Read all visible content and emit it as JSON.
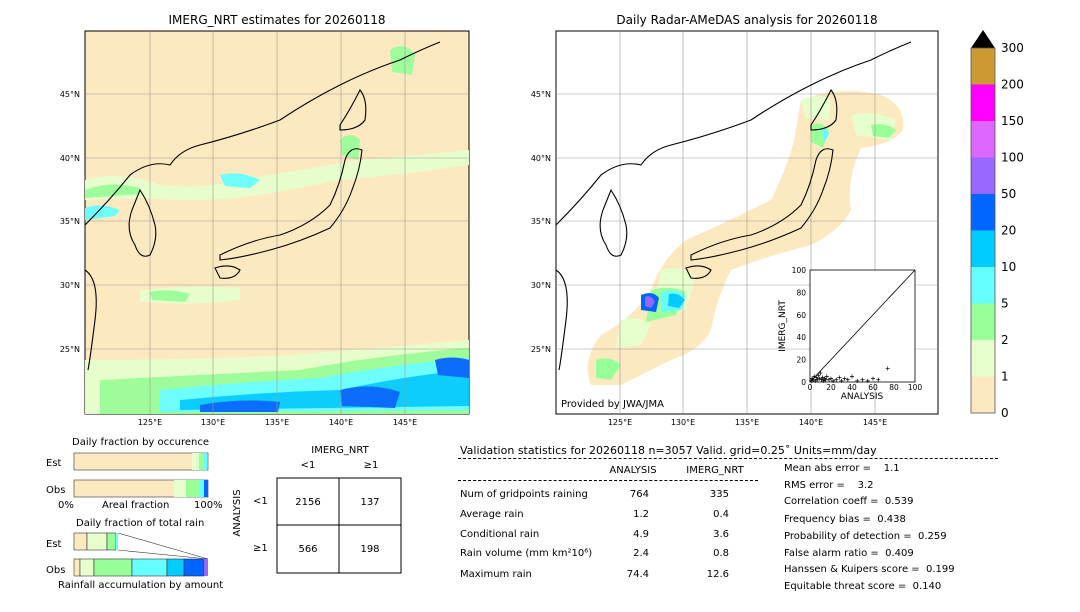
{
  "left_map": {
    "title": "IMERG_NRT estimates for 20260118",
    "lat_labels": [
      "45°N",
      "40°N",
      "35°N",
      "30°N",
      "25°N"
    ],
    "lon_labels": [
      "125°E",
      "130°E",
      "135°E",
      "140°E",
      "145°E"
    ]
  },
  "right_map": {
    "title": "Daily Radar-AMeDAS analysis for 20260118",
    "lat_labels": [
      "45°N",
      "40°N",
      "35°N",
      "30°N",
      "25°N"
    ],
    "lon_labels": [
      "125°E",
      "130°E",
      "135°E",
      "140°E",
      "145°E"
    ],
    "credit": "Provided by JWA/JMA"
  },
  "colorbar": {
    "levels": [
      "0",
      "1",
      "2",
      "5",
      "10",
      "20",
      "50",
      "100",
      "150",
      "200",
      "300"
    ],
    "colors": [
      "#fde9c0",
      "#e6ffcc",
      "#99ff99",
      "#66ffff",
      "#00ccff",
      "#0066ff",
      "#9966ff",
      "#dd66ff",
      "#ff00ff",
      "#cc9933"
    ],
    "extend_color": "#000000"
  },
  "scatter": {
    "ylabel": "IMERG_NRT",
    "xlabel": "ANALYSIS",
    "ticks": [
      "0",
      "20",
      "40",
      "60",
      "80",
      "100"
    ]
  },
  "fraction_occurrence": {
    "title": "Daily fraction by occurence",
    "rows": [
      "Est",
      "Obs"
    ],
    "xlabel_left": "0%",
    "xlabel_mid": "Areal fraction",
    "xlabel_right": "100%"
  },
  "fraction_rain": {
    "title": "Daily fraction of total rain",
    "rows": [
      "Est",
      "Obs"
    ],
    "xlabel": "Rainfall accumulation by amount"
  },
  "contingency": {
    "title": "IMERG_NRT",
    "col_labels": [
      "<1",
      "≥1"
    ],
    "row_title": "ANALYSIS",
    "row_labels": [
      "<1",
      "≥1"
    ],
    "cells": [
      [
        "2156",
        "137"
      ],
      [
        "566",
        "198"
      ]
    ]
  },
  "validation": {
    "header": "Validation statistics for 20260118  n=3057 Valid. grid=0.25˚ Units=mm/day",
    "col_analysis": "ANALYSIS",
    "col_imerg": "IMERG_NRT",
    "rows": [
      {
        "label": "Num of gridpoints raining",
        "analysis": "764",
        "imerg": "335"
      },
      {
        "label": "Average rain",
        "analysis": "1.2",
        "imerg": "0.4"
      },
      {
        "label": "Conditional rain",
        "analysis": "4.9",
        "imerg": "3.6"
      },
      {
        "label": "Rain volume (mm km²10⁶)",
        "analysis": "2.4",
        "imerg": "0.8"
      },
      {
        "label": "Maximum rain",
        "analysis": "74.4",
        "imerg": "12.6"
      }
    ],
    "scores": [
      "Mean abs error =    1.1",
      "RMS error =    3.2",
      "Correlation coeff =  0.539",
      "Frequency bias =  0.438",
      "Probability of detection =  0.259",
      "False alarm ratio =  0.409",
      "Hanssen & Kuipers score =  0.199",
      "Equitable threat score =  0.140"
    ]
  },
  "chart_data": [
    {
      "type": "heatmap",
      "title": "IMERG_NRT estimates for 20260118",
      "xlabel": "",
      "ylabel": "",
      "xlim": [
        119.5,
        150
      ],
      "ylim": [
        20,
        50
      ],
      "x_ticks": [
        "125°E",
        "130°E",
        "135°E",
        "140°E",
        "145°E"
      ],
      "y_ticks": [
        "25°N",
        "30°N",
        "35°N",
        "40°N",
        "45°N"
      ],
      "grid": true
    },
    {
      "type": "heatmap",
      "title": "Daily Radar-AMeDAS analysis for 20260118",
      "xlabel": "",
      "ylabel": "",
      "xlim": [
        119.5,
        150
      ],
      "ylim": [
        20,
        50
      ],
      "x_ticks": [
        "125°E",
        "130°E",
        "135°E",
        "140°E",
        "145°E"
      ],
      "y_ticks": [
        "25°N",
        "30°N",
        "35°N",
        "40°N",
        "45°N"
      ],
      "grid": true
    },
    {
      "type": "scatter",
      "xlabel": "ANALYSIS",
      "ylabel": "IMERG_NRT",
      "xlim": [
        0,
        100
      ],
      "ylim": [
        0,
        100
      ],
      "points": [
        [
          1,
          1
        ],
        [
          2,
          3
        ],
        [
          3,
          2
        ],
        [
          4,
          5
        ],
        [
          5,
          1
        ],
        [
          6,
          4
        ],
        [
          7,
          2
        ],
        [
          8,
          6
        ],
        [
          9,
          3
        ],
        [
          10,
          8
        ],
        [
          11,
          2
        ],
        [
          12,
          4
        ],
        [
          13,
          1
        ],
        [
          14,
          3
        ],
        [
          15,
          2
        ],
        [
          16,
          5
        ],
        [
          18,
          2
        ],
        [
          20,
          3
        ],
        [
          22,
          1
        ],
        [
          25,
          2
        ],
        [
          28,
          4
        ],
        [
          30,
          1
        ],
        [
          33,
          3
        ],
        [
          36,
          2
        ],
        [
          40,
          5
        ],
        [
          45,
          1
        ],
        [
          50,
          2
        ],
        [
          55,
          1
        ],
        [
          60,
          3
        ],
        [
          65,
          2
        ],
        [
          74,
          12
        ]
      ]
    },
    {
      "type": "table",
      "title": "IMERG_NRT",
      "columns": [
        "<1",
        "≥1"
      ],
      "rows": [
        "<1",
        "≥1"
      ],
      "values": [
        [
          2156,
          137
        ],
        [
          566,
          198
        ]
      ]
    }
  ]
}
